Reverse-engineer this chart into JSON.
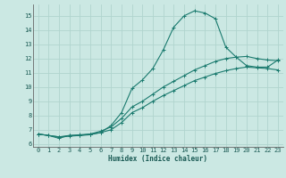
{
  "xlabel": "Humidex (Indice chaleur)",
  "bg_color": "#cbe8e3",
  "grid_color": "#b0d4ce",
  "line_color": "#1a7a6e",
  "xlim": [
    -0.5,
    23.5
  ],
  "ylim": [
    5.8,
    15.8
  ],
  "yticks": [
    6,
    7,
    8,
    9,
    10,
    11,
    12,
    13,
    14,
    15
  ],
  "xticks": [
    0,
    1,
    2,
    3,
    4,
    5,
    6,
    7,
    8,
    9,
    10,
    11,
    12,
    13,
    14,
    15,
    16,
    17,
    18,
    19,
    20,
    21,
    22,
    23
  ],
  "line1_x": [
    0,
    1,
    2,
    3,
    4,
    5,
    6,
    7,
    8,
    9,
    10,
    11,
    12,
    13,
    14,
    15,
    16,
    17,
    18,
    19,
    20,
    21,
    22,
    23
  ],
  "line1_y": [
    6.7,
    6.6,
    6.4,
    6.6,
    6.6,
    6.7,
    6.8,
    7.3,
    8.2,
    9.9,
    10.5,
    11.3,
    12.6,
    14.2,
    15.0,
    15.35,
    15.2,
    14.8,
    12.8,
    12.1,
    11.5,
    11.4,
    11.4,
    11.9
  ],
  "line2_x": [
    0,
    1,
    2,
    3,
    4,
    5,
    6,
    7,
    8,
    9,
    10,
    11,
    12,
    13,
    14,
    15,
    16,
    17,
    18,
    19,
    20,
    21,
    22,
    23
  ],
  "line2_y": [
    6.7,
    6.6,
    6.5,
    6.6,
    6.65,
    6.7,
    6.9,
    7.2,
    7.8,
    8.6,
    9.0,
    9.5,
    10.0,
    10.4,
    10.8,
    11.2,
    11.5,
    11.8,
    12.0,
    12.1,
    12.15,
    12.0,
    11.9,
    11.85
  ],
  "line3_x": [
    0,
    1,
    2,
    3,
    4,
    5,
    6,
    7,
    8,
    9,
    10,
    11,
    12,
    13,
    14,
    15,
    16,
    17,
    18,
    19,
    20,
    21,
    22,
    23
  ],
  "line3_y": [
    6.7,
    6.6,
    6.5,
    6.55,
    6.6,
    6.65,
    6.8,
    7.0,
    7.5,
    8.2,
    8.55,
    9.0,
    9.4,
    9.75,
    10.1,
    10.45,
    10.7,
    10.95,
    11.15,
    11.3,
    11.4,
    11.35,
    11.3,
    11.2
  ],
  "xlabel_fontsize": 5.5,
  "tick_fontsize": 5.0
}
